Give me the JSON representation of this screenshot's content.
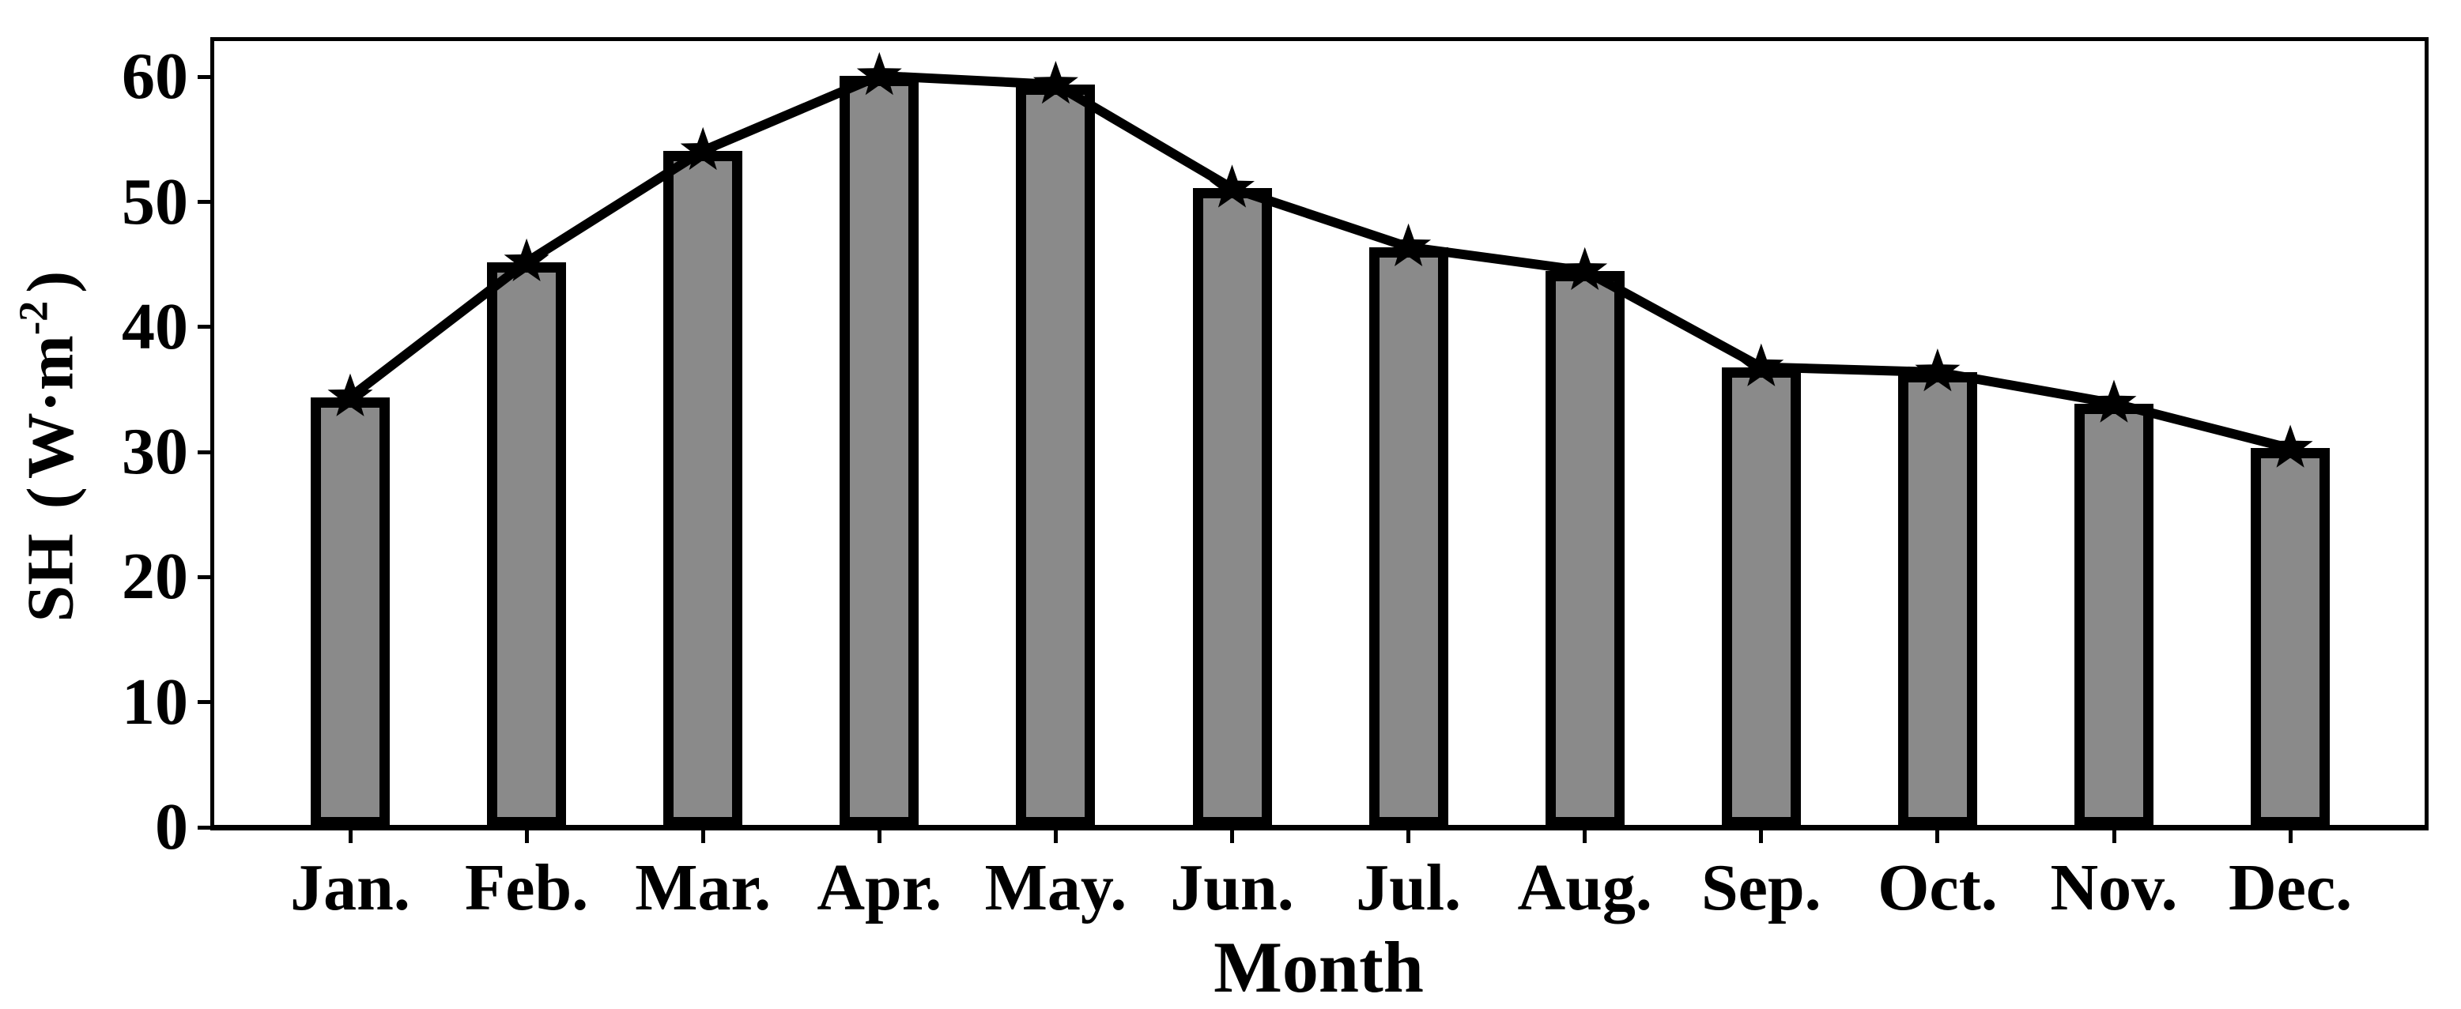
{
  "figure": {
    "background_color": "#ffffff",
    "axis_color": "#000000"
  },
  "chart_data": {
    "type": "bar",
    "categories": [
      "Jan.",
      "Feb.",
      "Mar.",
      "Apr.",
      "May.",
      "Jun.",
      "Jul.",
      "Aug.",
      "Sep.",
      "Oct.",
      "Nov.",
      "Dec."
    ],
    "values": [
      34.4,
      45.2,
      54.1,
      60.1,
      59.4,
      51.1,
      46.4,
      44.5,
      36.8,
      36.4,
      33.9,
      30.3
    ],
    "overlay_line": {
      "type": "line",
      "marker": "star",
      "same_values_as_bars": true,
      "color": "#000000"
    },
    "title": "",
    "xlabel": "Month",
    "ylabel": "SH (W·m⁻²)",
    "ylabel_parts": {
      "name": "SH",
      "open_paren": "(",
      "unit": "W·m",
      "superscript": "-2",
      "close_paren": ")"
    },
    "ylim": [
      0,
      63
    ],
    "yticks": [
      0,
      10,
      20,
      30,
      40,
      50,
      60
    ],
    "grid": false,
    "legend": "none",
    "bar_color": "#8a8a8a",
    "bar_edge_color": "#000000",
    "line_color": "#000000",
    "marker_color": "#000000"
  }
}
